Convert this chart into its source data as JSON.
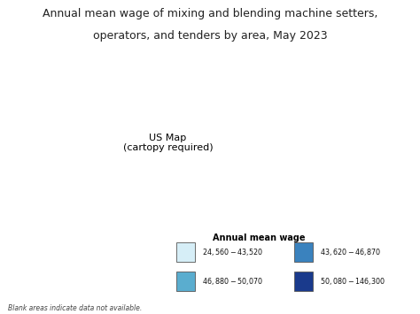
{
  "title_line1": "Annual mean wage of mixing and blending machine setters,",
  "title_line2": "operators, and tenders by area, May 2023",
  "title_fontsize": 9.0,
  "title_color": "#222222",
  "legend_title": "Annual mean wage",
  "legend_entries": [
    {
      "label": "$24,560 - $43,520",
      "color": "#d6eef7"
    },
    {
      "label": "$46,880 - $50,070",
      "color": "#5aadcf"
    },
    {
      "label": "$43,620 - $46,870",
      "color": "#3a82be"
    },
    {
      "label": "$50,080 - $146,300",
      "color": "#1a3a8c"
    }
  ],
  "footnote": "Blank areas indicate data not available.",
  "background_color": "#ffffff"
}
